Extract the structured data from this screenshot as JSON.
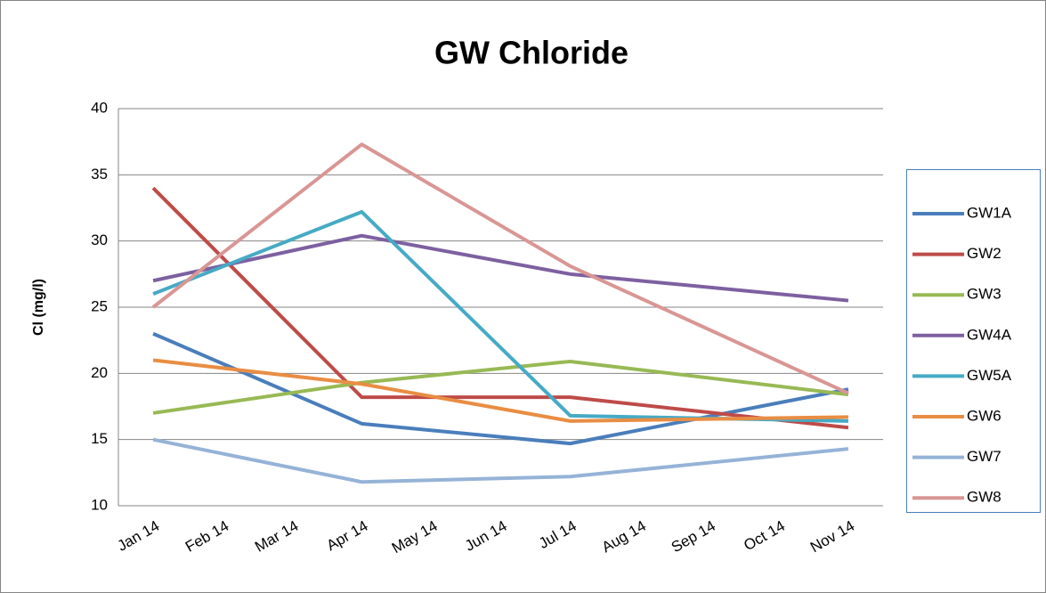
{
  "chart_data": {
    "type": "line",
    "title": "GW Chloride",
    "y_label": "Cl (mg/l)",
    "categories": [
      "Jan 14",
      "Feb 14",
      "Mar 14",
      "Apr 14",
      "May 14",
      "Jun 14",
      "Jul 14",
      "Aug 14",
      "Sep 14",
      "Oct 14",
      "Nov 14"
    ],
    "x": [
      "Jan 14",
      "Apr 14",
      "Jul 14",
      "Nov 14"
    ],
    "ylim": [
      10,
      40
    ],
    "yticks": [
      10,
      15,
      20,
      25,
      30,
      35,
      40
    ],
    "grid": true,
    "legend": "right",
    "series": [
      {
        "name": "GW1A",
        "color": "#4a7ebb",
        "values": [
          23,
          16.2,
          14.7,
          18.8
        ]
      },
      {
        "name": "GW2",
        "color": "#be4b48",
        "values": [
          34,
          18.2,
          18.2,
          15.9
        ]
      },
      {
        "name": "GW3",
        "color": "#98b954",
        "values": [
          17,
          19.3,
          20.9,
          18.4
        ]
      },
      {
        "name": "GW4A",
        "color": "#7d60a0",
        "values": [
          27,
          30.4,
          27.5,
          25.5
        ]
      },
      {
        "name": "GW5A",
        "color": "#46aac5",
        "values": [
          26,
          32.2,
          16.8,
          16.4
        ]
      },
      {
        "name": "GW6",
        "color": "#e98d43",
        "values": [
          21,
          19.2,
          16.4,
          16.7
        ]
      },
      {
        "name": "GW7",
        "color": "#95b3d7",
        "values": [
          15,
          11.8,
          12.2,
          14.3
        ]
      },
      {
        "name": "GW8",
        "color": "#d99694",
        "values": [
          25,
          37.3,
          28.1,
          18.5
        ]
      }
    ]
  }
}
